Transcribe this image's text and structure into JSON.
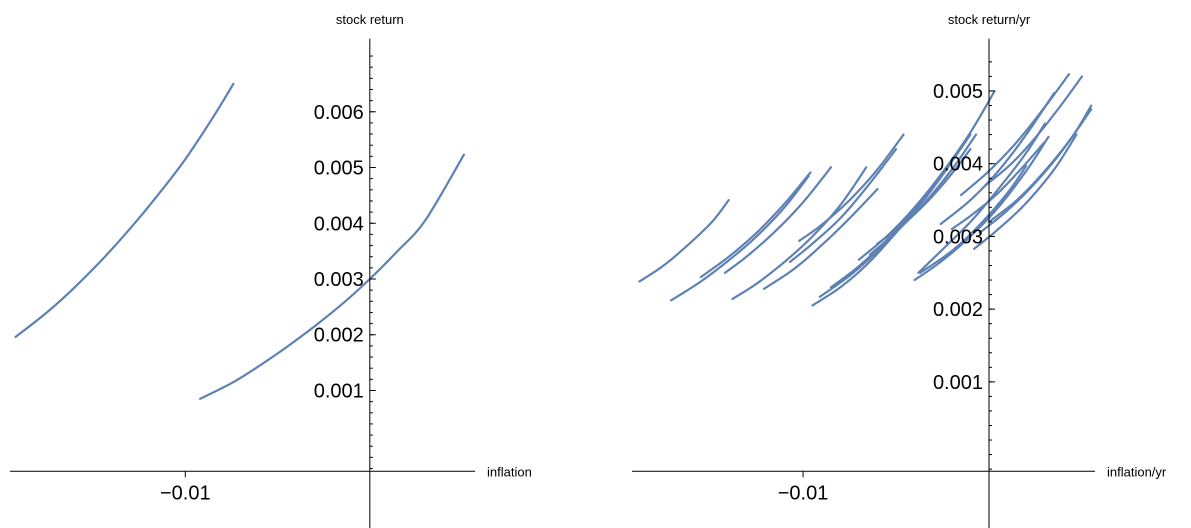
{
  "chart_data": [
    {
      "type": "line",
      "xlabel": "inflation",
      "ylabel": "stock return",
      "xlim": [
        -0.0195,
        0.0057
      ],
      "ylim": [
        -0.00045,
        0.00713
      ],
      "x_ticks": [
        {
          "value": -0.01,
          "label": "−0.01"
        }
      ],
      "y_ticks": [
        {
          "value": 0.001,
          "label": "0.001"
        },
        {
          "value": 0.002,
          "label": "0.002"
        },
        {
          "value": 0.003,
          "label": "0.003"
        },
        {
          "value": 0.004,
          "label": "0.004"
        },
        {
          "value": 0.005,
          "label": "0.005"
        },
        {
          "value": 0.006,
          "label": "0.006"
        }
      ],
      "minor_y_step": 0.0002,
      "grid": false,
      "color": "#5E81B5",
      "series": [
        {
          "x": [
            -0.0192,
            -0.0175,
            -0.016,
            -0.0145,
            -0.013,
            -0.0115,
            -0.01,
            -0.0085,
            -0.0074
          ],
          "y": [
            0.00196,
            0.0024,
            0.00285,
            0.00335,
            0.0039,
            0.0045,
            0.00515,
            0.0059,
            0.0065
          ]
        },
        {
          "x": [
            -0.0092,
            -0.0075,
            -0.006,
            -0.0045,
            -0.003,
            -0.0015,
            0.0,
            0.0015,
            0.003,
            0.0051
          ],
          "y": [
            0.00085,
            0.00113,
            0.00144,
            0.00178,
            0.00215,
            0.00255,
            0.003,
            0.0035,
            0.00405,
            0.00523
          ]
        }
      ]
    },
    {
      "type": "scatter",
      "xlabel": "inflation/yr",
      "ylabel": "stock return/yr",
      "xlim": [
        -0.0192,
        0.0057
      ],
      "ylim": [
        -0.00023,
        0.00558
      ],
      "x_ticks": [
        {
          "value": -0.01,
          "label": "−0.01"
        }
      ],
      "y_ticks": [
        {
          "value": 0.001,
          "label": "0.001"
        },
        {
          "value": 0.002,
          "label": "0.002"
        },
        {
          "value": 0.003,
          "label": "0.003"
        },
        {
          "value": 0.004,
          "label": "0.004"
        },
        {
          "value": 0.005,
          "label": "0.005"
        }
      ],
      "minor_y_step": 0.0002,
      "grid": false,
      "color": "#5E81B5",
      "series": [
        {
          "x": [
            -0.0188,
            -0.0175,
            -0.0162,
            -0.0149,
            -0.014
          ],
          "y": [
            0.00238,
            0.0026,
            0.00288,
            0.0032,
            0.0035
          ]
        },
        {
          "x": [
            -0.0171,
            -0.0155,
            -0.014,
            -0.0125,
            -0.011,
            -0.0097
          ],
          "y": [
            0.00212,
            0.00238,
            0.00267,
            0.003,
            0.0034,
            0.00383
          ]
        },
        {
          "x": [
            -0.0155,
            -0.014,
            -0.0125,
            -0.011,
            -0.0096
          ],
          "y": [
            0.00244,
            0.00272,
            0.00305,
            0.00345,
            0.00388
          ]
        },
        {
          "x": [
            -0.0142,
            -0.013,
            -0.0115,
            -0.01,
            -0.0085
          ],
          "y": [
            0.0025,
            0.00273,
            0.00307,
            0.00347,
            0.00395
          ]
        },
        {
          "x": [
            -0.0138,
            -0.0125,
            -0.011,
            -0.0095,
            -0.008,
            -0.0066
          ],
          "y": [
            0.00214,
            0.00235,
            0.00265,
            0.003,
            0.00343,
            0.00395
          ]
        },
        {
          "x": [
            -0.0121,
            -0.0105,
            -0.009,
            -0.0075,
            -0.006
          ],
          "y": [
            0.00228,
            0.00255,
            0.00288,
            0.00325,
            0.00365
          ]
        },
        {
          "x": [
            -0.0107,
            -0.0095,
            -0.008,
            -0.0065,
            -0.005
          ],
          "y": [
            0.00265,
            0.0029,
            0.00325,
            0.0037,
            0.0042
          ]
        },
        {
          "x": [
            -0.0102,
            -0.009,
            -0.0075,
            -0.006,
            -0.0046
          ],
          "y": [
            0.00294,
            0.00316,
            0.0035,
            0.00392,
            0.0044
          ]
        },
        {
          "x": [
            -0.0095,
            -0.008,
            -0.0065,
            -0.005,
            -0.0035,
            -0.0022
          ],
          "y": [
            0.00205,
            0.0023,
            0.00263,
            0.00305,
            0.0035,
            0.00395
          ]
        },
        {
          "x": [
            -0.0091,
            -0.0075,
            -0.006,
            -0.0045,
            -0.003
          ],
          "y": [
            0.00217,
            0.00246,
            0.0028,
            0.00322,
            0.0037
          ]
        },
        {
          "x": [
            -0.0085,
            -0.007,
            -0.0055,
            -0.004,
            -0.0025,
            -0.001
          ],
          "y": [
            0.0023,
            0.00259,
            0.00295,
            0.00337,
            0.00385,
            0.0044
          ]
        },
        {
          "x": [
            -0.007,
            -0.0055,
            -0.004,
            -0.0025,
            -0.001,
            0.0003
          ],
          "y": [
            0.00268,
            0.003,
            0.0034,
            0.00388,
            0.00443,
            0.005
          ]
        },
        {
          "x": [
            -0.0064,
            -0.005,
            -0.0035,
            -0.002,
            -0.0007
          ],
          "y": [
            0.00275,
            0.00306,
            0.00345,
            0.00392,
            0.0044
          ]
        },
        {
          "x": [
            -0.004,
            -0.0025,
            -0.001,
            0.0005,
            0.002,
            0.0032
          ],
          "y": [
            0.0024,
            0.00267,
            0.003,
            0.0034,
            0.0039,
            0.00437
          ]
        },
        {
          "x": [
            -0.0037,
            -0.002,
            -0.0005,
            0.001,
            0.002
          ],
          "y": [
            0.0025,
            0.0028,
            0.00316,
            0.0036,
            0.00397
          ]
        },
        {
          "x": [
            -0.0026,
            -0.001,
            0.0005,
            0.002,
            0.0035
          ],
          "y": [
            0.00317,
            0.0035,
            0.0039,
            0.0044,
            0.00497
          ]
        },
        {
          "x": [
            -0.0015,
            0.0,
            0.0015,
            0.003,
            0.0043
          ],
          "y": [
            0.00357,
            0.0039,
            0.0043,
            0.00478,
            0.00523
          ]
        },
        {
          "x": [
            -0.0038,
            -0.0025,
            -0.001,
            0.0005,
            0.002,
            0.003
          ],
          "y": [
            0.0025,
            0.00282,
            0.0032,
            0.00365,
            0.00415,
            0.00455
          ]
        },
        {
          "x": [
            -0.0008,
            0.0005,
            0.002,
            0.0035,
            0.0047
          ],
          "y": [
            0.00283,
            0.0031,
            0.00346,
            0.00392,
            0.0044
          ]
        },
        {
          "x": [
            -0.0005,
            0.001,
            0.0025,
            0.004,
            0.0055
          ],
          "y": [
            0.00305,
            0.00336,
            0.00374,
            0.0042,
            0.00475
          ]
        },
        {
          "x": [
            -0.0002,
            0.0012,
            0.0025,
            0.0038,
            0.005
          ],
          "y": [
            0.0037,
            0.004,
            0.00436,
            0.00478,
            0.0052
          ]
        },
        {
          "x": [
            0.0,
            0.0015,
            0.003,
            0.0045,
            0.0055
          ],
          "y": [
            0.0032,
            0.0035,
            0.0039,
            0.00438,
            0.0048
          ]
        },
        {
          "x": [
            -0.002,
            -0.0008,
            0.0005,
            0.0018,
            0.003
          ],
          "y": [
            0.0031,
            0.00332,
            0.0036,
            0.00395,
            0.0043
          ]
        },
        {
          "x": [
            -0.006,
            -0.0048,
            -0.0035,
            -0.0022,
            -0.001
          ],
          "y": [
            0.0029,
            0.00313,
            0.00343,
            0.0038,
            0.0042
          ]
        }
      ]
    }
  ]
}
